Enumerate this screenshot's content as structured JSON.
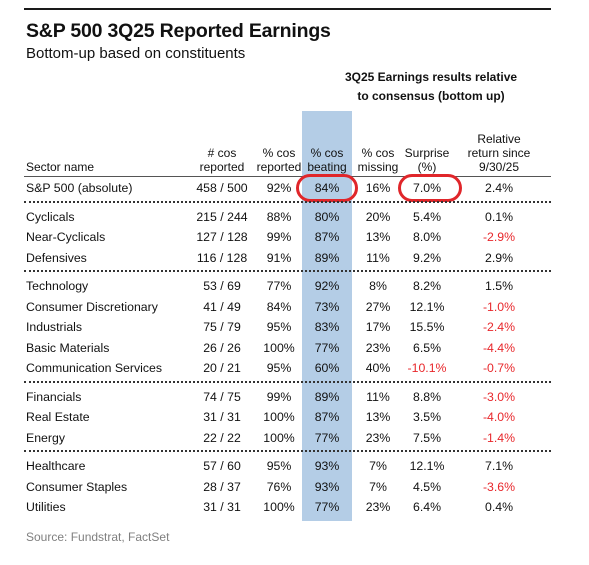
{
  "title": "S&P 500 3Q25 Reported Earnings",
  "subtitle": "Bottom-up based on constituents",
  "group_header": [
    "3Q25 Earnings results relative",
    "to consensus (bottom up)"
  ],
  "source": "Source: Fundstrat, FactSet",
  "colors": {
    "highlight": "#b4cde6",
    "negative": "#e8272b",
    "circle": "#e0262a"
  },
  "chart_data": {
    "type": "table",
    "columns": [
      [
        "Sector name"
      ],
      [
        "# cos",
        "reported"
      ],
      [
        "% cos",
        "reported"
      ],
      [
        "% cos",
        "beating"
      ],
      [
        "% cos",
        "missing"
      ],
      [
        "Surprise",
        "(%)"
      ],
      [
        "Relative",
        "return since",
        "9/30/25"
      ]
    ],
    "groups": [
      [
        [
          "S&P 500 (absolute)",
          "458 / 500",
          "92%",
          "84%",
          "16%",
          "7.0%",
          "2.4%"
        ]
      ],
      [
        [
          "Cyclicals",
          "215 / 244",
          "88%",
          "80%",
          "20%",
          "5.4%",
          "0.1%"
        ],
        [
          "Near-Cyclicals",
          "127 / 128",
          "99%",
          "87%",
          "13%",
          "8.0%",
          "-2.9%"
        ],
        [
          "Defensives",
          "116 / 128",
          "91%",
          "89%",
          "11%",
          "9.2%",
          "2.9%"
        ]
      ],
      [
        [
          "Technology",
          "53 / 69",
          "77%",
          "92%",
          "8%",
          "8.2%",
          "1.5%"
        ],
        [
          "Consumer Discretionary",
          "41 / 49",
          "84%",
          "73%",
          "27%",
          "12.1%",
          "-1.0%"
        ],
        [
          "Industrials",
          "75 / 79",
          "95%",
          "83%",
          "17%",
          "15.5%",
          "-2.4%"
        ],
        [
          "Basic Materials",
          "26 / 26",
          "100%",
          "77%",
          "23%",
          "6.5%",
          "-4.4%"
        ],
        [
          "Communication Services",
          "20 / 21",
          "95%",
          "60%",
          "40%",
          "-10.1%",
          "-0.7%"
        ]
      ],
      [
        [
          "Financials",
          "74 / 75",
          "99%",
          "89%",
          "11%",
          "8.8%",
          "-3.0%"
        ],
        [
          "Real Estate",
          "31 / 31",
          "100%",
          "87%",
          "13%",
          "3.5%",
          "-4.0%"
        ],
        [
          "Energy",
          "22 / 22",
          "100%",
          "77%",
          "23%",
          "7.5%",
          "-1.4%"
        ]
      ],
      [
        [
          "Healthcare",
          "57 / 60",
          "95%",
          "93%",
          "7%",
          "12.1%",
          "7.1%"
        ],
        [
          "Consumer Staples",
          "28 / 37",
          "76%",
          "93%",
          "7%",
          "4.5%",
          "-3.6%"
        ],
        [
          "Utilities",
          "31 / 31",
          "100%",
          "77%",
          "23%",
          "6.4%",
          "0.4%"
        ]
      ]
    ],
    "highlighted_column": "% cos beating",
    "circled_cells": [
      "S&P 500 (absolute) / % cos beating",
      "S&P 500 (absolute) / Surprise (%)"
    ]
  }
}
